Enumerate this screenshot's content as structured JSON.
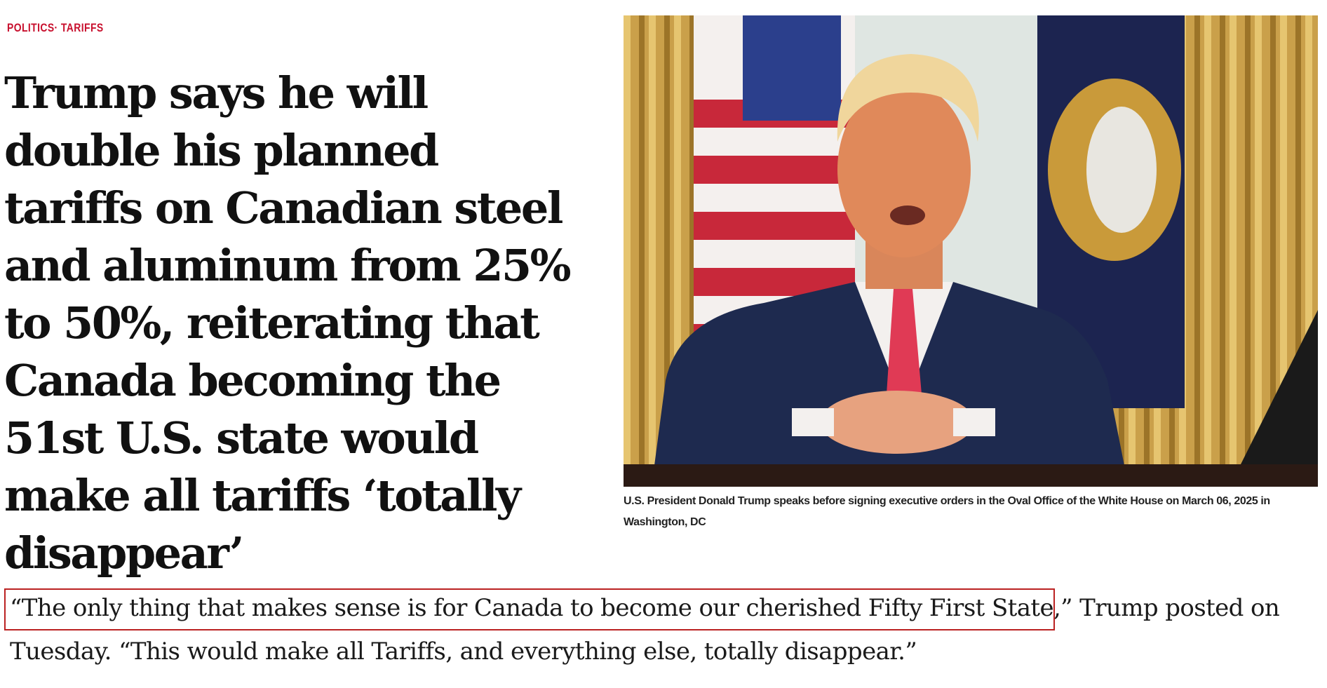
{
  "article": {
    "category": "POLITICS· TARIFFS",
    "headline": "Trump says he will double his planned tariffs on Canadian steel and aluminum from 25% to 50%, reiterating that Canada becoming the 51st U.S. state would make all tariffs ‘totally disappear’",
    "photo_caption": "U.S. President Donald Trump speaks before signing executive orders in the Oval Office of the White House on March 06, 2025 in Washington, DC",
    "body_quote_highlighted": "“The only thing that makes sense is for Canada to become our cherished Fifty First State",
    "body_rest": ",” Trump posted on Tuesday. “This would make all Tariffs, and everything else, totally disappear.”"
  },
  "colors": {
    "category": "#c8102e",
    "highlight_box": "#b22222",
    "text": "#111111"
  }
}
